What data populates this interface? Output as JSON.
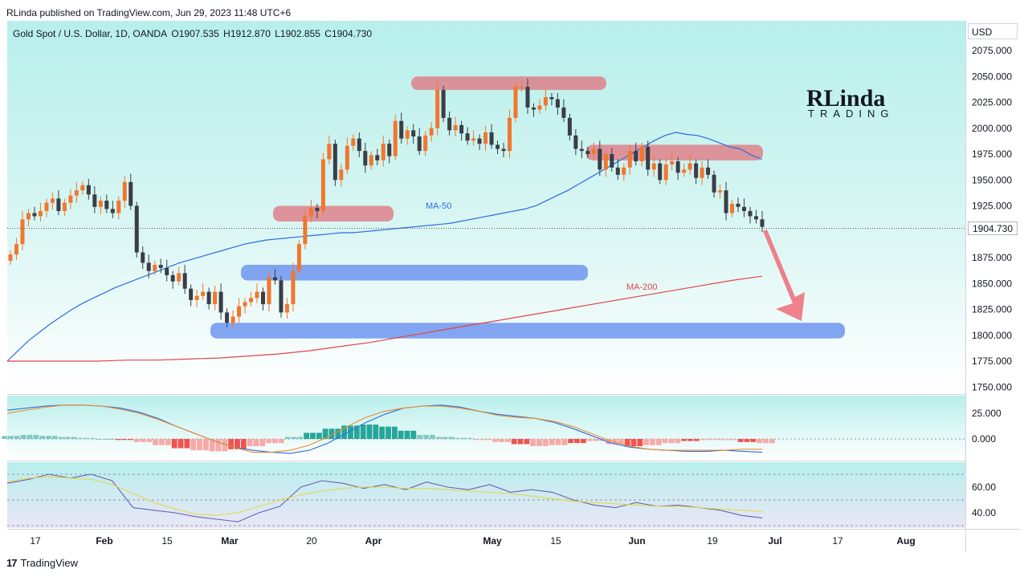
{
  "header": {
    "published": "RLinda published on TradingView.com, Jun 29, 2023 11:48 UTC+6"
  },
  "symbol": {
    "name": "Gold Spot / U.S. Dollar, 1D, OANDA",
    "open": "O1907.535",
    "high": "H1912.870",
    "low": "L1902.855",
    "close": "C1904.730"
  },
  "currency": "USD",
  "last_price_label": "1904.730",
  "logo": {
    "top": "RLinda",
    "bottom": "TRADING"
  },
  "footer": {
    "brand": "TradingView"
  },
  "colors": {
    "up": "#f0772e",
    "down": "#3a3d47",
    "ma50": "#2f6be0",
    "ma200": "#e0454a",
    "resistance_zone": "#e07a83",
    "support_zone": "#6f95ee",
    "arrow": "#ef6b78",
    "background_top": "#b7efeb",
    "background_bottom": "#ffffff"
  },
  "chart_data": [
    {
      "type": "candlestick",
      "title": "Gold Spot / U.S. Dollar, 1D, OANDA",
      "ylim": [
        1750,
        2100
      ],
      "y_ticks": [
        "2075.000",
        "2050.000",
        "2025.000",
        "2000.000",
        "1975.000",
        "1950.000",
        "1925.000",
        "1900.000",
        "1875.000",
        "1850.000",
        "1825.000",
        "1800.000",
        "1775.000",
        "1750.000"
      ],
      "x_ticks": [
        "17",
        "Feb",
        "15",
        "Mar",
        "20",
        "Apr",
        "May",
        "15",
        "Jun",
        "19",
        "Jul",
        "17",
        "Aug"
      ],
      "annotations": [
        "MA-50",
        "MA-200"
      ],
      "close_series": [
        1878,
        1888,
        1912,
        1918,
        1915,
        1920,
        1928,
        1932,
        1920,
        1928,
        1935,
        1940,
        1945,
        1936,
        1924,
        1930,
        1922,
        1918,
        1930,
        1948,
        1925,
        1880,
        1870,
        1862,
        1868,
        1865,
        1858,
        1852,
        1860,
        1845,
        1834,
        1838,
        1842,
        1830,
        1842,
        1822,
        1812,
        1818,
        1828,
        1832,
        1836,
        1842,
        1830,
        1856,
        1853,
        1822,
        1830,
        1862,
        1888,
        1915,
        1923,
        1920,
        1970,
        1985,
        1950,
        1960,
        1983,
        1990,
        1978,
        1964,
        1974,
        1969,
        1985,
        1973,
        2007,
        1990,
        1998,
        1992,
        1978,
        1993,
        2000,
        2037,
        2010,
        1998,
        2003,
        1995,
        1988,
        1990,
        1985,
        1996,
        1984,
        1980,
        1978,
        2010,
        2040,
        2040,
        2020,
        2018,
        2022,
        2030,
        2028,
        2020,
        2010,
        1993,
        1980,
        1978,
        1975,
        1980,
        1960,
        1975,
        1962,
        1955,
        1962,
        1978,
        1968,
        1982,
        1960,
        1966,
        1950,
        1965,
        1968,
        1957,
        1960,
        1966,
        1952,
        1962,
        1955,
        1938,
        1940,
        1918,
        1927,
        1924,
        1920,
        1915,
        1912,
        1904.73
      ],
      "ma50": [
        1775,
        1785,
        1795,
        1803,
        1811,
        1818,
        1825,
        1831,
        1836,
        1841,
        1846,
        1850,
        1854,
        1858,
        1862,
        1866,
        1870,
        1873,
        1876,
        1879,
        1882,
        1885,
        1888,
        1890,
        1892,
        1893,
        1894,
        1895,
        1896,
        1897,
        1898,
        1899,
        1899,
        1900,
        1901,
        1902,
        1903,
        1904,
        1905,
        1906,
        1907,
        1908,
        1910,
        1912,
        1914,
        1916,
        1918,
        1920,
        1922,
        1925,
        1930,
        1935,
        1940,
        1946,
        1952,
        1958,
        1964,
        1970,
        1976,
        1982,
        1988,
        1993,
        1996,
        1994,
        1993,
        1990,
        1986,
        1982,
        1980,
        1974,
        1970
      ],
      "ma200": [
        1775,
        1775,
        1775,
        1775,
        1776,
        1776,
        1777,
        1778,
        1780,
        1782,
        1785,
        1789,
        1793,
        1798,
        1803,
        1808,
        1813,
        1818,
        1823,
        1828,
        1833,
        1838,
        1843,
        1848,
        1853,
        1857
      ],
      "zones": [
        {
          "kind": "resistance",
          "from": 2050,
          "to": 2040
        },
        {
          "kind": "resistance",
          "from": 1984,
          "to": 1972
        },
        {
          "kind": "resistance",
          "from": 1925,
          "to": 1913
        },
        {
          "kind": "support",
          "from": 1868,
          "to": 1856
        },
        {
          "kind": "support",
          "from": 1812,
          "to": 1800
        }
      ]
    },
    {
      "type": "line",
      "title": "MACD",
      "ylim": [
        -15,
        38
      ],
      "y_ticks": [
        "25.000",
        "0.000"
      ],
      "series": [
        {
          "values": [
            28,
            30,
            32,
            33,
            33,
            32,
            30,
            26,
            20,
            12,
            5,
            -2,
            -8,
            -11,
            -13,
            -14,
            -11,
            -4,
            6,
            16,
            24,
            30,
            32,
            33,
            31,
            27,
            24,
            22,
            20,
            16,
            10,
            3,
            -4,
            -8,
            -10,
            -11,
            -12,
            -12,
            -11,
            -12,
            -13
          ]
        },
        {
          "values": [
            25,
            28,
            31,
            33,
            33,
            32,
            29,
            25,
            19,
            12,
            5,
            -2,
            -8,
            -13,
            -13,
            -11,
            -6,
            2,
            12,
            21,
            27,
            30,
            32,
            32,
            30,
            27,
            23,
            21,
            20,
            17,
            12,
            5,
            -2,
            -7,
            -10,
            -11,
            -11,
            -11,
            -11,
            -10,
            -10
          ]
        }
      ],
      "histogram": [
        3,
        4,
        3,
        2,
        1,
        0,
        -1,
        -3,
        -6,
        -9,
        -11,
        -12,
        -10,
        -7,
        -4,
        2,
        6,
        10,
        13,
        14,
        12,
        8,
        4,
        2,
        1,
        -1,
        -3,
        -5,
        -7,
        -6,
        -4,
        -2,
        -5,
        -7,
        -6,
        -4,
        -2,
        -1,
        -1,
        -3,
        -4
      ]
    },
    {
      "type": "line",
      "title": "RSI",
      "ylim": [
        30,
        75
      ],
      "y_ticks": [
        "60.00",
        "40.00"
      ],
      "series": [
        {
          "values": [
            63,
            66,
            70,
            67,
            70,
            65,
            44,
            42,
            40,
            37,
            35,
            33,
            40,
            45,
            60,
            65,
            63,
            59,
            62,
            58,
            64,
            60,
            58,
            62,
            56,
            58,
            56,
            50,
            46,
            44,
            48,
            45,
            46,
            44,
            42,
            38,
            36
          ]
        },
        {
          "values": [
            64,
            67,
            68,
            67,
            66,
            62,
            55,
            48,
            43,
            39,
            38,
            40,
            45,
            50,
            54,
            57,
            59,
            60,
            60,
            59,
            59,
            58,
            57,
            56,
            55,
            53,
            51,
            49,
            48,
            47,
            46,
            45,
            45,
            44,
            43,
            42,
            41
          ]
        }
      ]
    }
  ]
}
